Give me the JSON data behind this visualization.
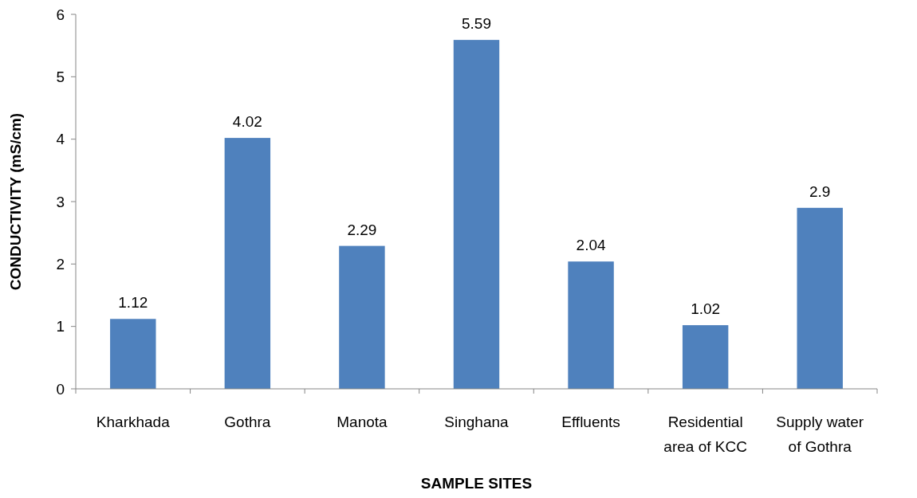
{
  "chart_data": {
    "type": "bar",
    "xlabel": "SAMPLE SITES",
    "ylabel": "CONDUCTIVITY (mS/cm)",
    "categories": [
      "Kharkhada",
      "Gothra",
      "Manota",
      "Singhana",
      "Effluents",
      "Residential area of KCC",
      "Supply water of Gothra"
    ],
    "values": [
      1.12,
      4.02,
      2.29,
      5.59,
      2.04,
      1.02,
      2.9
    ],
    "color": "#4f81bd",
    "ylim": [
      0,
      6
    ],
    "yticks": [
      0,
      1,
      2,
      3,
      4,
      5,
      6
    ],
    "data_labels": true,
    "grid": false
  }
}
